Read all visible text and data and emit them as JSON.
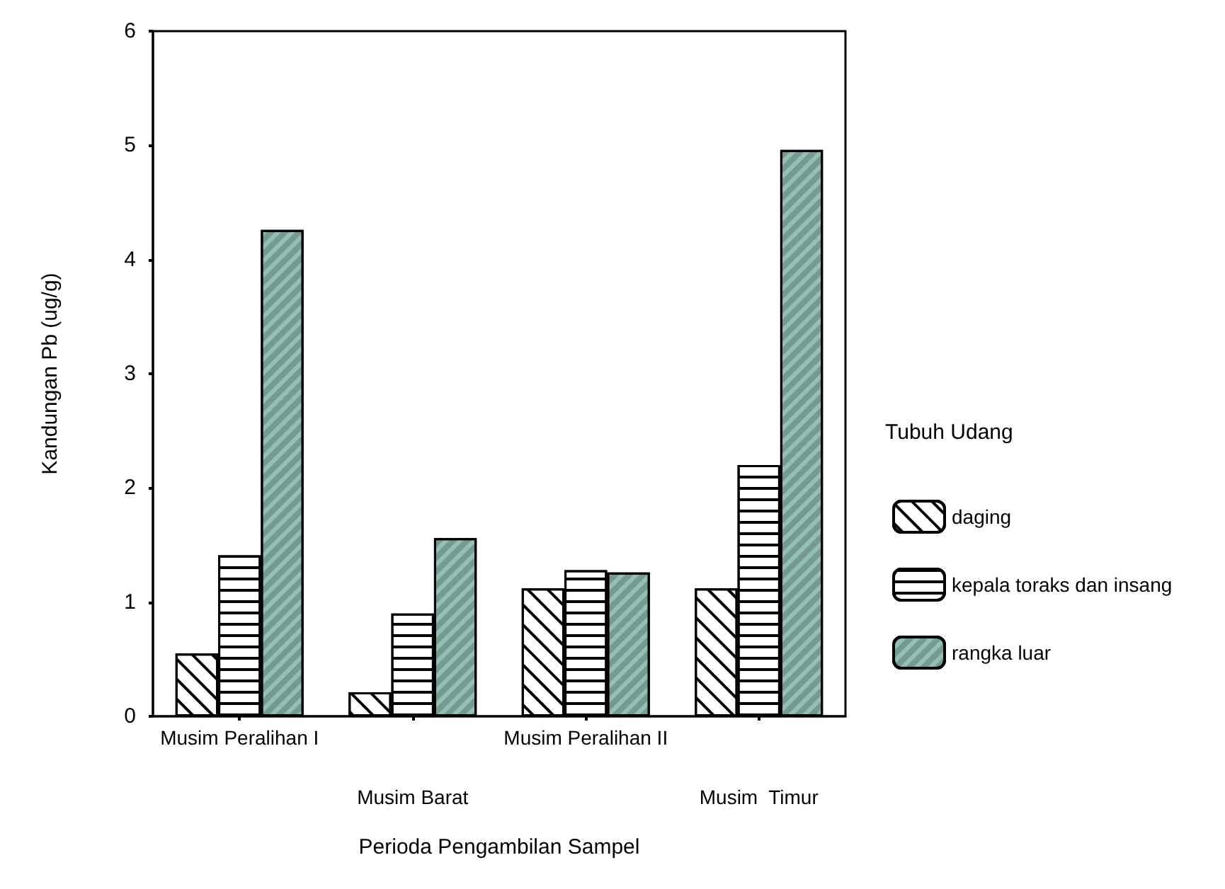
{
  "chart_data": {
    "type": "bar",
    "xlabel": "Perioda Pengambilan Sampel",
    "ylabel": "Kandungan Pb (ug/g)",
    "legend_title": "Tubuh Udang",
    "categories": [
      "Musim Peralihan I",
      "Musim Barat",
      "Musim Peralihan II",
      "Musim  Timur"
    ],
    "series": [
      {
        "name": "daging",
        "color": "#ffffff",
        "values": [
          0.55,
          0.21,
          1.12,
          1.12
        ]
      },
      {
        "name": "kepala toraks dan insang",
        "color": "#ffffff",
        "values": [
          1.41,
          0.9,
          1.28,
          2.2
        ]
      },
      {
        "name": "rangka luar",
        "color": "#93bfb7",
        "values": [
          4.26,
          1.56,
          1.26,
          4.96
        ]
      }
    ],
    "ylim": [
      0,
      6
    ],
    "yticks": [
      0,
      1,
      2,
      3,
      4,
      5,
      6
    ],
    "grid": false,
    "legend": "right"
  }
}
